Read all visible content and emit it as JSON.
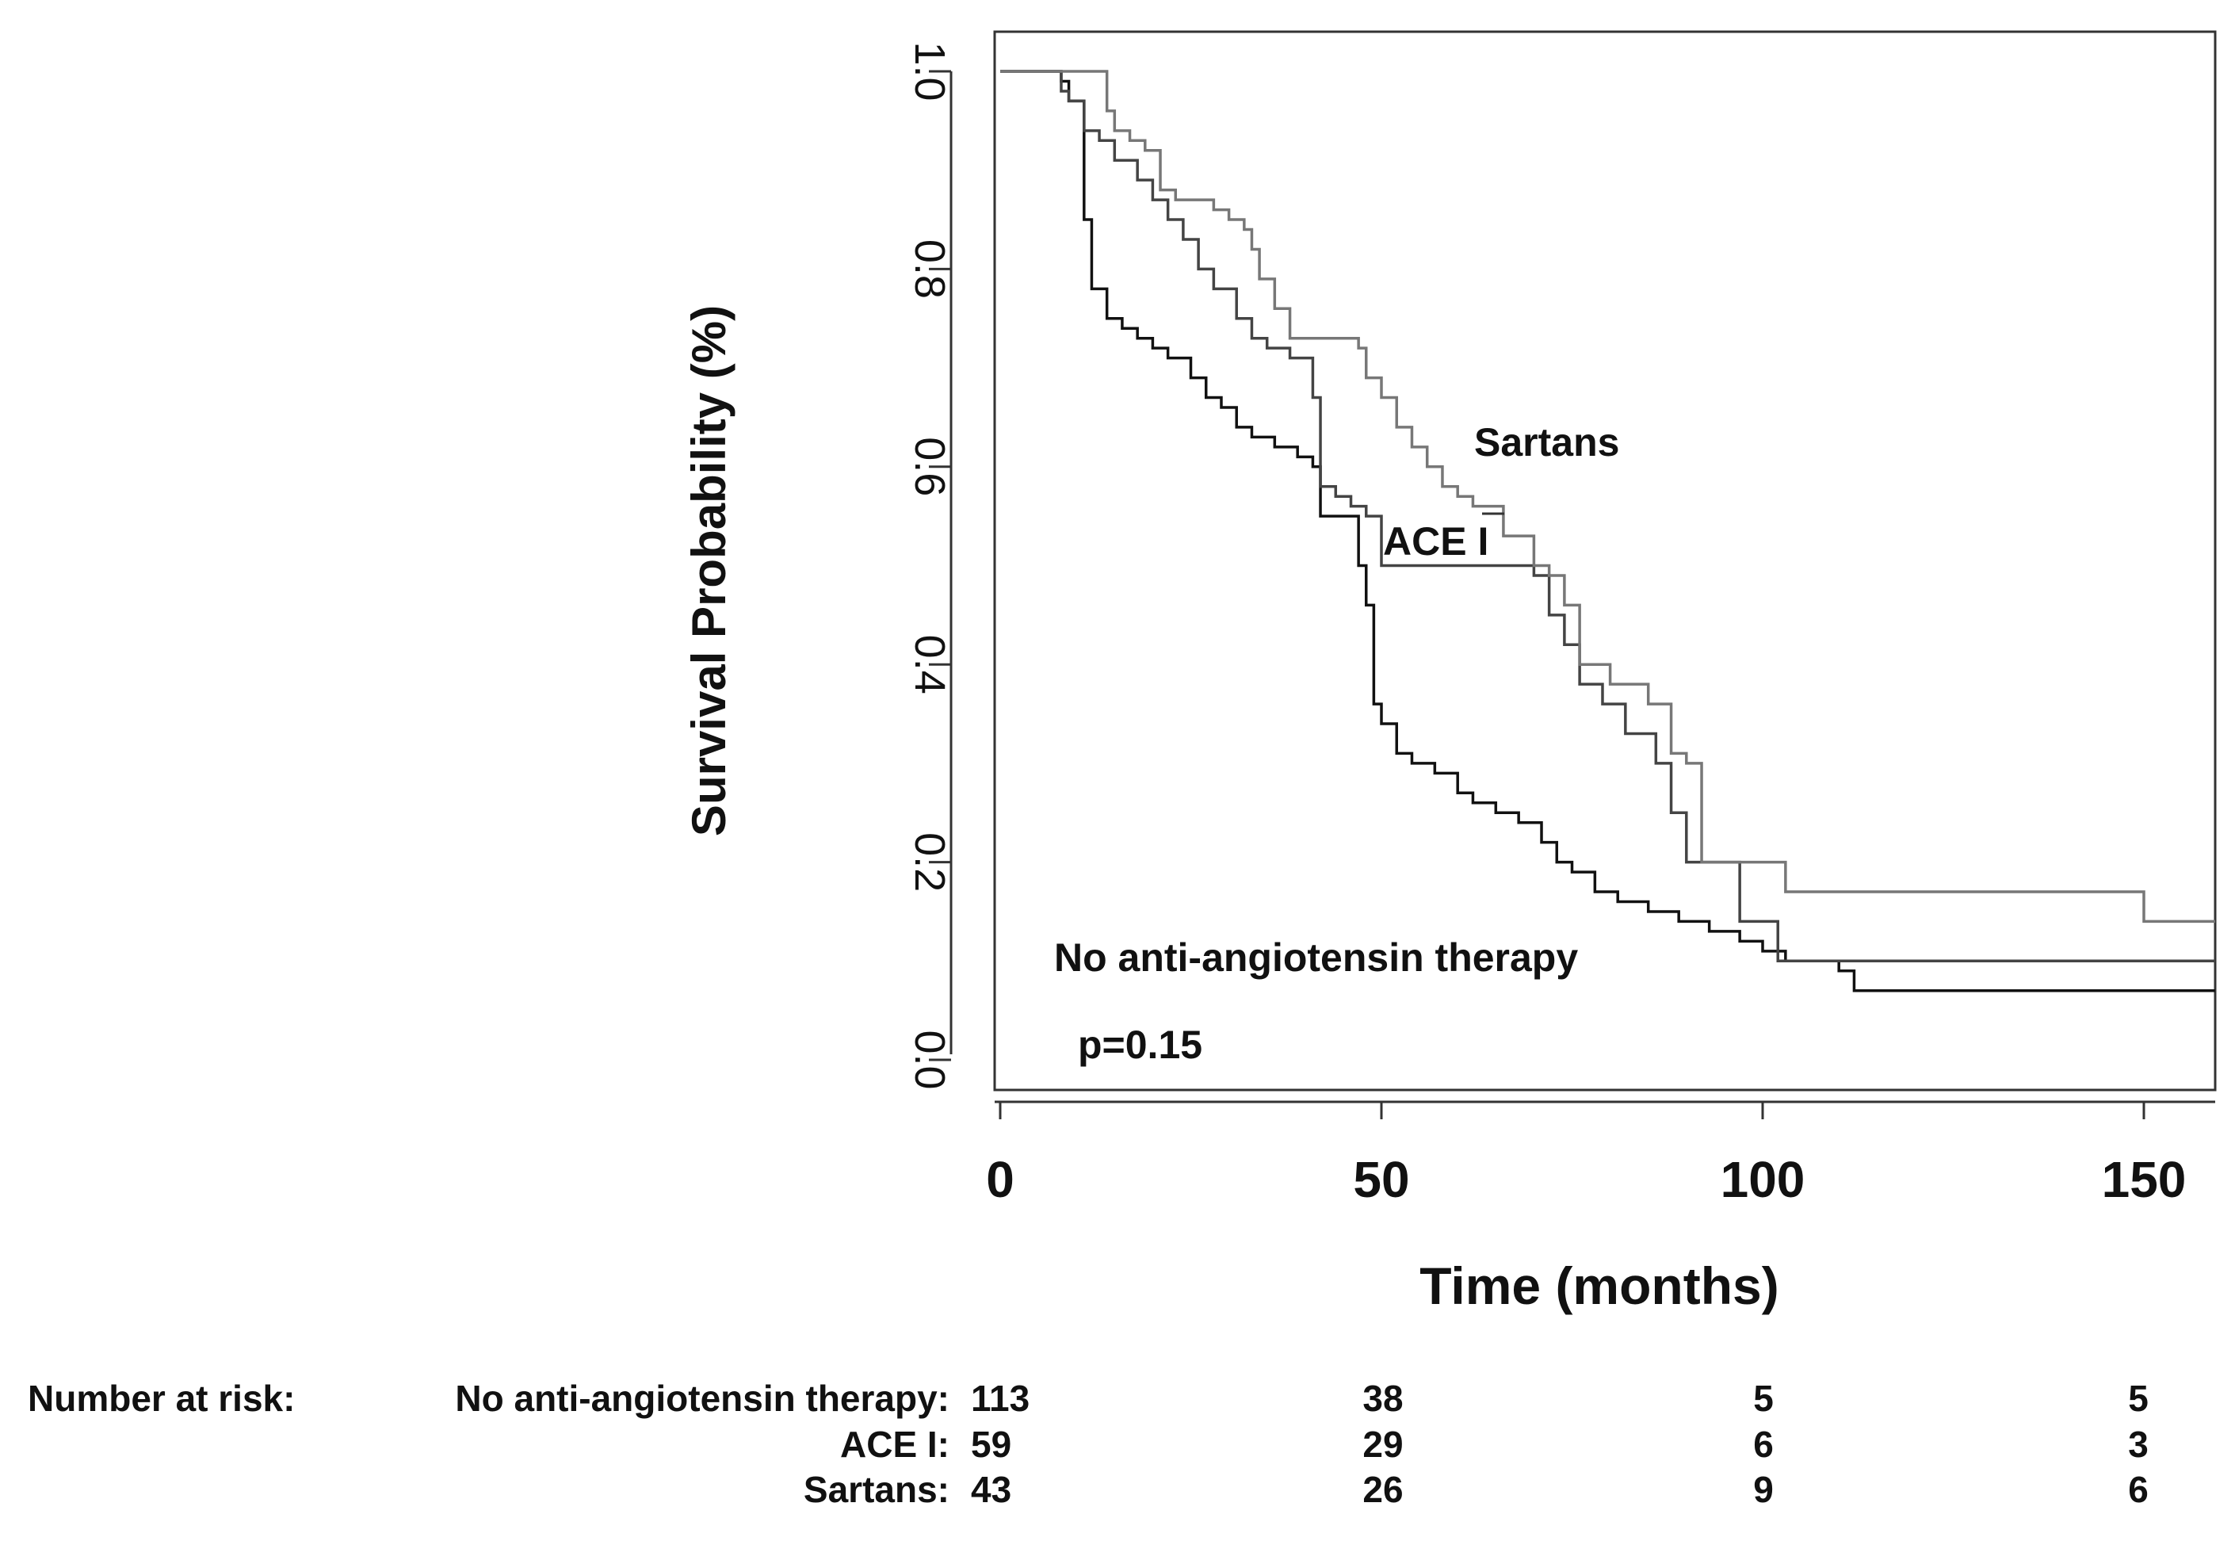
{
  "chart_data": {
    "type": "line",
    "subtype": "kaplan-meier",
    "ylabel": "Survival Probability (%)",
    "xlabel": "Time (months)",
    "xlim": [
      0,
      160
    ],
    "ylim": [
      0,
      1.0
    ],
    "x_ticks": [
      "0",
      "50",
      "100",
      "150"
    ],
    "x_tick_values": [
      0,
      50,
      100,
      150
    ],
    "y_ticks": [
      "0.0",
      "0.2",
      "0.4",
      "0.6",
      "0.8",
      "1.0"
    ],
    "y_tick_values": [
      0,
      0.2,
      0.4,
      0.6,
      0.8,
      1.0
    ],
    "annotations": {
      "sartans_label": "Sartans",
      "acei_label": "ACE I",
      "none_label": "No anti-angiotensin therapy",
      "p_value": "p=0.15"
    },
    "series": [
      {
        "name": "No anti-angiotensin therapy",
        "color": "#111111",
        "x": [
          0,
          8,
          9,
          11,
          12,
          14,
          16,
          18,
          20,
          22,
          25,
          27,
          29,
          31,
          33,
          36,
          39,
          41,
          42,
          44,
          47,
          48,
          49,
          50,
          52,
          54,
          57,
          60,
          62,
          65,
          68,
          71,
          73,
          75,
          78,
          81,
          85,
          89,
          93,
          97,
          100,
          103,
          110,
          112,
          125,
          140,
          160
        ],
        "y": [
          1.0,
          0.99,
          0.97,
          0.85,
          0.78,
          0.75,
          0.74,
          0.73,
          0.72,
          0.71,
          0.69,
          0.67,
          0.66,
          0.64,
          0.63,
          0.62,
          0.61,
          0.6,
          0.55,
          0.55,
          0.5,
          0.46,
          0.36,
          0.34,
          0.31,
          0.3,
          0.29,
          0.27,
          0.26,
          0.25,
          0.24,
          0.22,
          0.2,
          0.19,
          0.17,
          0.16,
          0.15,
          0.14,
          0.13,
          0.12,
          0.11,
          0.1,
          0.09,
          0.07,
          0.07,
          0.07,
          0.07
        ]
      },
      {
        "name": "ACE I",
        "color": "#444444",
        "x": [
          0,
          8,
          9,
          11,
          13,
          15,
          18,
          20,
          22,
          24,
          26,
          28,
          31,
          33,
          35,
          38,
          41,
          42,
          44,
          46,
          48,
          50,
          52,
          55,
          58,
          62,
          66,
          70,
          72,
          74,
          76,
          79,
          82,
          86,
          88,
          90,
          93,
          97,
          102,
          110,
          130,
          160
        ],
        "y": [
          1.0,
          0.98,
          0.97,
          0.94,
          0.93,
          0.91,
          0.89,
          0.87,
          0.85,
          0.83,
          0.8,
          0.78,
          0.75,
          0.73,
          0.72,
          0.71,
          0.67,
          0.58,
          0.57,
          0.56,
          0.55,
          0.5,
          0.5,
          0.5,
          0.5,
          0.5,
          0.5,
          0.49,
          0.45,
          0.42,
          0.38,
          0.36,
          0.33,
          0.3,
          0.25,
          0.2,
          0.2,
          0.14,
          0.1,
          0.1,
          0.1,
          0.1
        ]
      },
      {
        "name": "Sartans",
        "color": "#777777",
        "x": [
          0,
          14,
          15,
          17,
          19,
          21,
          23,
          25,
          28,
          30,
          32,
          33,
          34,
          36,
          38,
          40,
          42,
          44,
          47,
          48,
          50,
          52,
          54,
          56,
          58,
          60,
          62,
          66,
          70,
          72,
          74,
          76,
          80,
          85,
          88,
          90,
          92,
          98,
          103,
          108,
          130,
          150,
          160
        ],
        "y": [
          1.0,
          0.96,
          0.94,
          0.93,
          0.92,
          0.88,
          0.87,
          0.87,
          0.86,
          0.85,
          0.84,
          0.82,
          0.79,
          0.76,
          0.73,
          0.73,
          0.73,
          0.73,
          0.72,
          0.69,
          0.67,
          0.64,
          0.62,
          0.6,
          0.58,
          0.57,
          0.56,
          0.53,
          0.5,
          0.49,
          0.46,
          0.4,
          0.38,
          0.36,
          0.31,
          0.3,
          0.2,
          0.2,
          0.17,
          0.17,
          0.17,
          0.14,
          0.14
        ]
      }
    ],
    "risk_table": {
      "header": "Number at risk:",
      "rows": [
        {
          "label": "No anti-angiotensin  therapy:",
          "values": [
            "113",
            "38",
            "5",
            "5"
          ]
        },
        {
          "label": "ACE I:",
          "values": [
            "59",
            "29",
            "6",
            "3"
          ]
        },
        {
          "label": "Sartans:",
          "values": [
            "43",
            "26",
            "9",
            "6"
          ]
        }
      ]
    }
  }
}
